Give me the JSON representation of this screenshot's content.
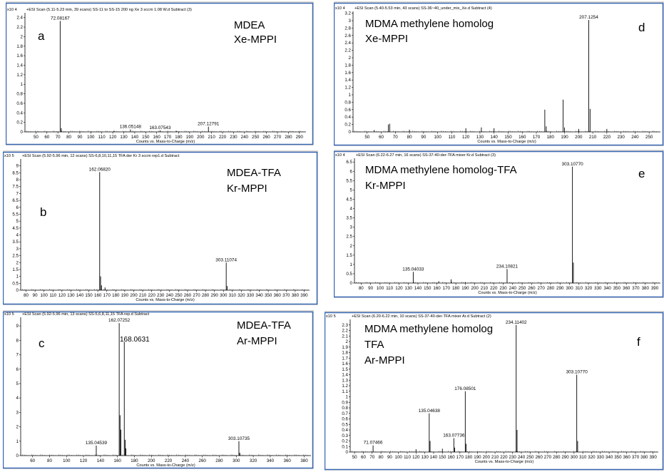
{
  "chart_data": [
    {
      "id": "a",
      "type": "bar",
      "header": "+ESI Scan (5.11-5.23 min, 39 scans) SS-11 to SS-15 200 ng Xe 3 sccm 1.08 W.d  Subtract (3)",
      "exponent": "x10 4",
      "panel_letter": "a",
      "labels": [
        "MDEA",
        "Xe-MPPI"
      ],
      "xlabel": "Counts vs. Mass-to-Charge (m/z)",
      "xlim": [
        40,
        296
      ],
      "ylim": [
        0,
        2.5
      ],
      "xticks": [
        50,
        60,
        70,
        80,
        90,
        100,
        110,
        120,
        130,
        140,
        150,
        160,
        170,
        180,
        190,
        200,
        210,
        220,
        230,
        240,
        250,
        260,
        270,
        280,
        290
      ],
      "yticks": [
        0,
        0.2,
        0.4,
        0.6,
        0.8,
        1,
        1.2,
        1.4,
        1.6,
        1.8,
        2,
        2.2,
        2.4
      ],
      "ytick_labels": [
        "0",
        "0.2",
        "0.4",
        "0.6",
        "0.8",
        "1",
        "1.2",
        "1.4",
        "1.6",
        "1.8",
        "2",
        "2.2",
        "2.4"
      ],
      "peaks": [
        [
          72.08,
          2.33
        ],
        [
          73.1,
          0.08
        ],
        [
          136.05,
          0.05
        ],
        [
          163.08,
          0.03
        ],
        [
          207.13,
          0.11
        ],
        [
          121.0,
          0.02
        ],
        [
          178.0,
          0.02
        ]
      ],
      "peak_labels": [
        {
          "x": 72.08,
          "y": 2.33,
          "text": "72.08167"
        },
        {
          "x": 136.05,
          "y": 0.05,
          "text": "136.05148"
        },
        {
          "x": 163.08,
          "y": 0.03,
          "text": "163.07543"
        },
        {
          "x": 207.13,
          "y": 0.11,
          "text": "207.12791"
        }
      ]
    },
    {
      "id": "b",
      "type": "bar",
      "header": "+ESI Scan (5.92-5.96 min, 12 scans) SS-6,8,10,11,15 TFA der Kr 3 sccm rep1.d  Subtract",
      "exponent": "x10 5",
      "panel_letter": "b",
      "labels": [
        "MDEA-TFA",
        "Kr-MPPI"
      ],
      "xlabel": "Counts vs. Mass-to-Charge (m/z)",
      "xlim": [
        74,
        396
      ],
      "ylim": [
        0,
        9.5
      ],
      "xticks": [
        80,
        90,
        100,
        110,
        120,
        130,
        140,
        150,
        160,
        170,
        180,
        190,
        200,
        210,
        220,
        230,
        240,
        250,
        260,
        270,
        280,
        290,
        300,
        310,
        320,
        330,
        340,
        350,
        360,
        370,
        380,
        390
      ],
      "yticks": [
        0,
        0.5,
        1,
        1.5,
        2,
        2.5,
        3,
        3.5,
        4,
        4.5,
        5,
        5.5,
        6,
        6.5,
        7,
        7.5,
        8,
        8.5,
        9
      ],
      "ytick_labels": [
        "0",
        "0.5",
        "1",
        "1.5",
        "2",
        "2.5",
        "3",
        "3.5",
        "4",
        "4.5",
        "5",
        "5.5",
        "6",
        "6.5",
        "7",
        "7.5",
        "8",
        "8.5",
        "9"
      ],
      "peaks": [
        [
          162.07,
          8.55
        ],
        [
          163.07,
          1.0
        ],
        [
          164.1,
          0.35
        ],
        [
          168.0,
          0.2
        ],
        [
          303.11,
          2.0
        ],
        [
          304.1,
          0.3
        ]
      ],
      "peak_labels": [
        {
          "x": 162.07,
          "y": 8.55,
          "text": "162.06820"
        },
        {
          "x": 303.11,
          "y": 2.0,
          "text": "303.11074"
        }
      ]
    },
    {
      "id": "c",
      "type": "bar",
      "header": "+ESI Scan (5.92-5.96 min, 13 scans) SS-5,6,8,11,15 TFA rep.d  Subtract",
      "exponent": "x10 5",
      "panel_letter": "c",
      "labels": [
        "MDEA-TFA",
        "Ar-MPPI"
      ],
      "xlabel": "Counts vs. Mass-to-Charge (m/z)",
      "xlim": [
        46,
        388
      ],
      "ylim": [
        0,
        9.6
      ],
      "xticks": [
        60,
        80,
        100,
        120,
        140,
        160,
        180,
        200,
        220,
        240,
        260,
        280,
        300,
        320,
        340,
        360,
        380
      ],
      "yticks": [
        0,
        1,
        2,
        3,
        4,
        5,
        6,
        7,
        8,
        9
      ],
      "ytick_labels": [
        "0",
        "1",
        "2",
        "3",
        "4",
        "5",
        "6",
        "7",
        "8",
        "9"
      ],
      "peaks": [
        [
          162.07,
          9.2
        ],
        [
          163.07,
          2.8
        ],
        [
          164.1,
          1.8
        ],
        [
          168.06,
          7.9
        ],
        [
          169.06,
          1.1
        ],
        [
          170.0,
          0.5
        ],
        [
          135.05,
          0.7
        ],
        [
          303.11,
          1.0
        ],
        [
          304.1,
          0.2
        ]
      ],
      "peak_labels": [
        {
          "x": 162.07,
          "y": 9.2,
          "text": "162.07252"
        },
        {
          "x": 135.05,
          "y": 0.7,
          "text": "135.04539"
        },
        {
          "x": 303.11,
          "y": 1.0,
          "text": "303.10735"
        }
      ],
      "extra_label": "168.0631"
    },
    {
      "id": "d",
      "type": "bar",
      "header": "+ESI Scan (5.40-5.53 min, 43 scans) SS-36~40_under_mix_Xe.d  Subtract (4)",
      "exponent": "x10 4",
      "panel_letter": "d",
      "labels": [
        "MDMA methylene homolog",
        "Xe-MPPI"
      ],
      "xlabel": "Counts vs. Mass-to-Charge (m/z)",
      "xlim": [
        40,
        258
      ],
      "ylim": [
        0,
        3.25
      ],
      "xticks": [
        50,
        60,
        70,
        80,
        90,
        100,
        110,
        120,
        130,
        140,
        150,
        160,
        170,
        180,
        190,
        200,
        210,
        220,
        230,
        240,
        250
      ],
      "yticks": [
        0,
        0.2,
        0.4,
        0.6,
        0.8,
        1,
        1.2,
        1.4,
        1.6,
        1.8,
        2,
        2.2,
        2.4,
        2.6,
        2.8,
        3,
        3.2
      ],
      "ytick_labels": [
        "0",
        "0.2",
        "0.4",
        "0.6",
        "0.8",
        "1",
        "1.2",
        "1.4",
        "1.6",
        "1.8",
        "2",
        "2.2",
        "2.4",
        "2.6",
        "2.8",
        "3",
        "3.2"
      ],
      "peaks": [
        [
          207.13,
          3.02
        ],
        [
          208.1,
          0.62
        ],
        [
          176.0,
          0.6
        ],
        [
          189.0,
          0.87
        ],
        [
          190.0,
          0.12
        ],
        [
          65.0,
          0.2
        ],
        [
          66.0,
          0.22
        ],
        [
          177.0,
          0.15
        ],
        [
          131.0,
          0.12
        ],
        [
          120.0,
          0.1
        ],
        [
          140.0,
          0.1
        ],
        [
          200.0,
          0.08
        ],
        [
          220.0,
          0.08
        ],
        [
          80.0,
          0.06
        ],
        [
          55.0,
          0.05
        ]
      ],
      "peak_labels": [
        {
          "x": 207.13,
          "y": 3.02,
          "text": "207.1254"
        }
      ]
    },
    {
      "id": "e",
      "type": "bar",
      "header": "+ESI Scan (6.22-6.27 min, 16 scans) SS-37-40-der-TFA mixer Kr.d  Subtract (3)",
      "exponent": "x10 4",
      "panel_letter": "e",
      "labels": [
        "MDMA methylene homolog-TFA",
        "Kr-MPPI"
      ],
      "xlabel": "Counts vs. Mass-to-Charge (m/z)",
      "xlim": [
        73,
        396
      ],
      "ylim": [
        0,
        6.7
      ],
      "xticks": [
        80,
        90,
        100,
        110,
        120,
        130,
        140,
        150,
        160,
        170,
        180,
        190,
        200,
        210,
        220,
        230,
        240,
        250,
        260,
        270,
        280,
        290,
        300,
        310,
        320,
        330,
        340,
        350,
        360,
        370,
        380,
        390
      ],
      "yticks": [
        0,
        0.5,
        1,
        1.5,
        2,
        2.5,
        3,
        3.5,
        4,
        4.5,
        5,
        5.5,
        6,
        6.5
      ],
      "ytick_labels": [
        "0",
        "0.5",
        "1",
        "1.5",
        "2",
        "2.5",
        "3",
        "3.5",
        "4",
        "4.5",
        "5",
        "5.5",
        "6",
        "6.5"
      ],
      "peaks": [
        [
          303.11,
          6.25
        ],
        [
          304.1,
          1.1
        ],
        [
          135.04,
          0.6
        ],
        [
          234.11,
          0.75
        ],
        [
          175.0,
          0.2
        ],
        [
          162.0,
          0.1
        ],
        [
          190.0,
          0.05
        ]
      ],
      "peak_labels": [
        {
          "x": 303.11,
          "y": 6.25,
          "text": "303.10770"
        },
        {
          "x": 135.04,
          "y": 0.6,
          "text": "135.04033"
        },
        {
          "x": 234.11,
          "y": 0.75,
          "text": "234.10821"
        }
      ]
    },
    {
      "id": "f",
      "type": "bar",
      "header": "+ESI Scan (6.20-6.22 min, 10 scans) SS-37-40-der-TFA mixer Ar.d  Subtract (2)",
      "exponent": "x10 5",
      "panel_letter": "f",
      "labels": [
        "MDMA methylene homolog",
        "TFA",
        "Ar-MPPI"
      ],
      "xlabel": "Counts vs. Mass-to-Charge (m/z)",
      "xlim": [
        45,
        396
      ],
      "ylim": [
        0,
        2.4
      ],
      "xticks": [
        50,
        60,
        70,
        80,
        90,
        100,
        110,
        120,
        130,
        140,
        150,
        160,
        170,
        180,
        190,
        200,
        210,
        220,
        230,
        240,
        250,
        260,
        270,
        280,
        290,
        300,
        310,
        320,
        330,
        340,
        350,
        360,
        370,
        380,
        390
      ],
      "yticks": [
        0,
        0.1,
        0.2,
        0.3,
        0.4,
        0.5,
        0.6,
        0.7,
        0.8,
        0.9,
        1,
        1.1,
        1.2,
        1.3,
        1.4,
        1.5,
        1.6,
        1.7,
        1.8,
        1.9,
        2,
        2.1,
        2.2,
        2.3
      ],
      "ytick_labels": [
        "0",
        "0.1",
        "0.2",
        "0.3",
        "0.4",
        "0.5",
        "0.6",
        "0.7",
        "0.8",
        "0.9",
        "1",
        "1.1",
        "1.2",
        "1.3",
        "1.4",
        "1.5",
        "1.6",
        "1.7",
        "1.8",
        "1.9",
        "2",
        "2.1",
        "2.2",
        "2.3"
      ],
      "peaks": [
        [
          234.11,
          2.3
        ],
        [
          235.1,
          0.4
        ],
        [
          303.11,
          1.4
        ],
        [
          304.1,
          0.2
        ],
        [
          176.09,
          1.1
        ],
        [
          177.1,
          0.15
        ],
        [
          135.05,
          0.7
        ],
        [
          136.0,
          0.2
        ],
        [
          163.08,
          0.25
        ],
        [
          164.0,
          0.08
        ],
        [
          71.07,
          0.12
        ],
        [
          150.0,
          0.06
        ],
        [
          120.0,
          0.05
        ]
      ],
      "peak_labels": [
        {
          "x": 234.11,
          "y": 2.3,
          "text": "234.11402"
        },
        {
          "x": 303.11,
          "y": 1.4,
          "text": "303.10770"
        },
        {
          "x": 176.09,
          "y": 1.1,
          "text": "176.08501"
        },
        {
          "x": 135.05,
          "y": 0.7,
          "text": "135.04638"
        },
        {
          "x": 163.08,
          "y": 0.25,
          "text": "163.07736"
        },
        {
          "x": 71.07,
          "y": 0.12,
          "text": "71.07466"
        }
      ]
    }
  ]
}
